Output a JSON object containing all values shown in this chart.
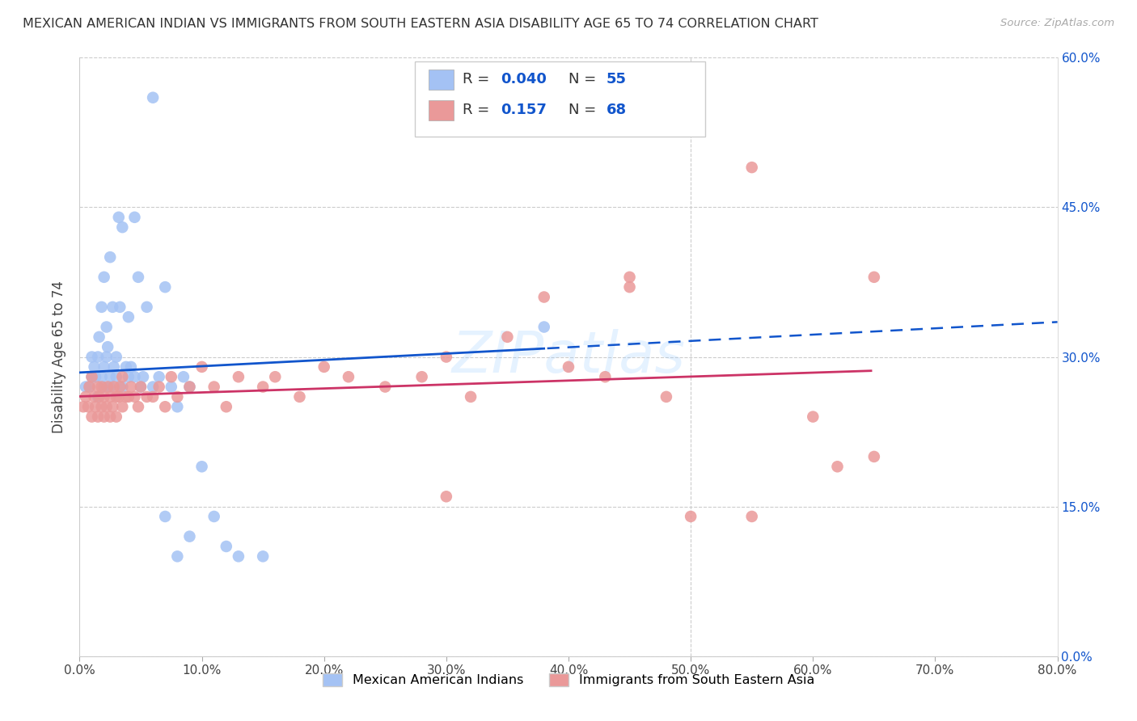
{
  "title": "MEXICAN AMERICAN INDIAN VS IMMIGRANTS FROM SOUTH EASTERN ASIA DISABILITY AGE 65 TO 74 CORRELATION CHART",
  "source": "Source: ZipAtlas.com",
  "ylabel": "Disability Age 65 to 74",
  "xlim": [
    0.0,
    0.8
  ],
  "ylim": [
    0.0,
    0.6
  ],
  "blue_R": 0.04,
  "blue_N": 55,
  "pink_R": 0.157,
  "pink_N": 68,
  "blue_color": "#a4c2f4",
  "pink_color": "#ea9999",
  "blue_line_color": "#1155cc",
  "pink_line_color": "#cc3366",
  "watermark": "ZIPatlas",
  "legend_label_blue": "Mexican American Indians",
  "legend_label_pink": "Immigrants from South Eastern Asia",
  "blue_scatter_x": [
    0.005,
    0.008,
    0.01,
    0.01,
    0.012,
    0.013,
    0.015,
    0.015,
    0.016,
    0.018,
    0.018,
    0.02,
    0.02,
    0.02,
    0.022,
    0.022,
    0.023,
    0.025,
    0.025,
    0.025,
    0.027,
    0.028,
    0.03,
    0.03,
    0.032,
    0.033,
    0.035,
    0.035,
    0.038,
    0.04,
    0.04,
    0.042,
    0.045,
    0.045,
    0.048,
    0.05,
    0.052,
    0.055,
    0.06,
    0.065,
    0.07,
    0.075,
    0.08,
    0.085,
    0.09,
    0.1,
    0.11,
    0.12,
    0.13,
    0.15,
    0.38,
    0.06,
    0.07,
    0.08,
    0.09
  ],
  "blue_scatter_y": [
    0.27,
    0.27,
    0.28,
    0.3,
    0.29,
    0.28,
    0.26,
    0.3,
    0.32,
    0.28,
    0.35,
    0.27,
    0.29,
    0.38,
    0.3,
    0.33,
    0.31,
    0.28,
    0.27,
    0.4,
    0.35,
    0.29,
    0.28,
    0.3,
    0.44,
    0.35,
    0.27,
    0.43,
    0.29,
    0.28,
    0.34,
    0.29,
    0.28,
    0.44,
    0.38,
    0.27,
    0.28,
    0.35,
    0.27,
    0.28,
    0.37,
    0.27,
    0.25,
    0.28,
    0.27,
    0.19,
    0.14,
    0.11,
    0.1,
    0.1,
    0.33,
    0.56,
    0.14,
    0.1,
    0.12
  ],
  "pink_scatter_x": [
    0.003,
    0.005,
    0.007,
    0.008,
    0.01,
    0.01,
    0.012,
    0.013,
    0.015,
    0.015,
    0.016,
    0.018,
    0.018,
    0.02,
    0.02,
    0.022,
    0.023,
    0.025,
    0.025,
    0.027,
    0.028,
    0.03,
    0.03,
    0.032,
    0.033,
    0.035,
    0.035,
    0.038,
    0.04,
    0.042,
    0.045,
    0.048,
    0.05,
    0.055,
    0.06,
    0.065,
    0.07,
    0.075,
    0.08,
    0.09,
    0.1,
    0.11,
    0.12,
    0.13,
    0.15,
    0.16,
    0.18,
    0.2,
    0.22,
    0.25,
    0.28,
    0.3,
    0.32,
    0.35,
    0.38,
    0.4,
    0.43,
    0.45,
    0.48,
    0.5,
    0.55,
    0.6,
    0.62,
    0.65,
    0.3,
    0.45,
    0.55,
    0.65
  ],
  "pink_scatter_y": [
    0.25,
    0.26,
    0.25,
    0.27,
    0.24,
    0.28,
    0.26,
    0.25,
    0.24,
    0.27,
    0.26,
    0.25,
    0.27,
    0.24,
    0.26,
    0.25,
    0.27,
    0.24,
    0.26,
    0.25,
    0.27,
    0.24,
    0.26,
    0.26,
    0.27,
    0.25,
    0.28,
    0.26,
    0.26,
    0.27,
    0.26,
    0.25,
    0.27,
    0.26,
    0.26,
    0.27,
    0.25,
    0.28,
    0.26,
    0.27,
    0.29,
    0.27,
    0.25,
    0.28,
    0.27,
    0.28,
    0.26,
    0.29,
    0.28,
    0.27,
    0.28,
    0.3,
    0.26,
    0.32,
    0.36,
    0.29,
    0.28,
    0.38,
    0.26,
    0.14,
    0.14,
    0.24,
    0.19,
    0.2,
    0.16,
    0.37,
    0.49,
    0.38
  ]
}
